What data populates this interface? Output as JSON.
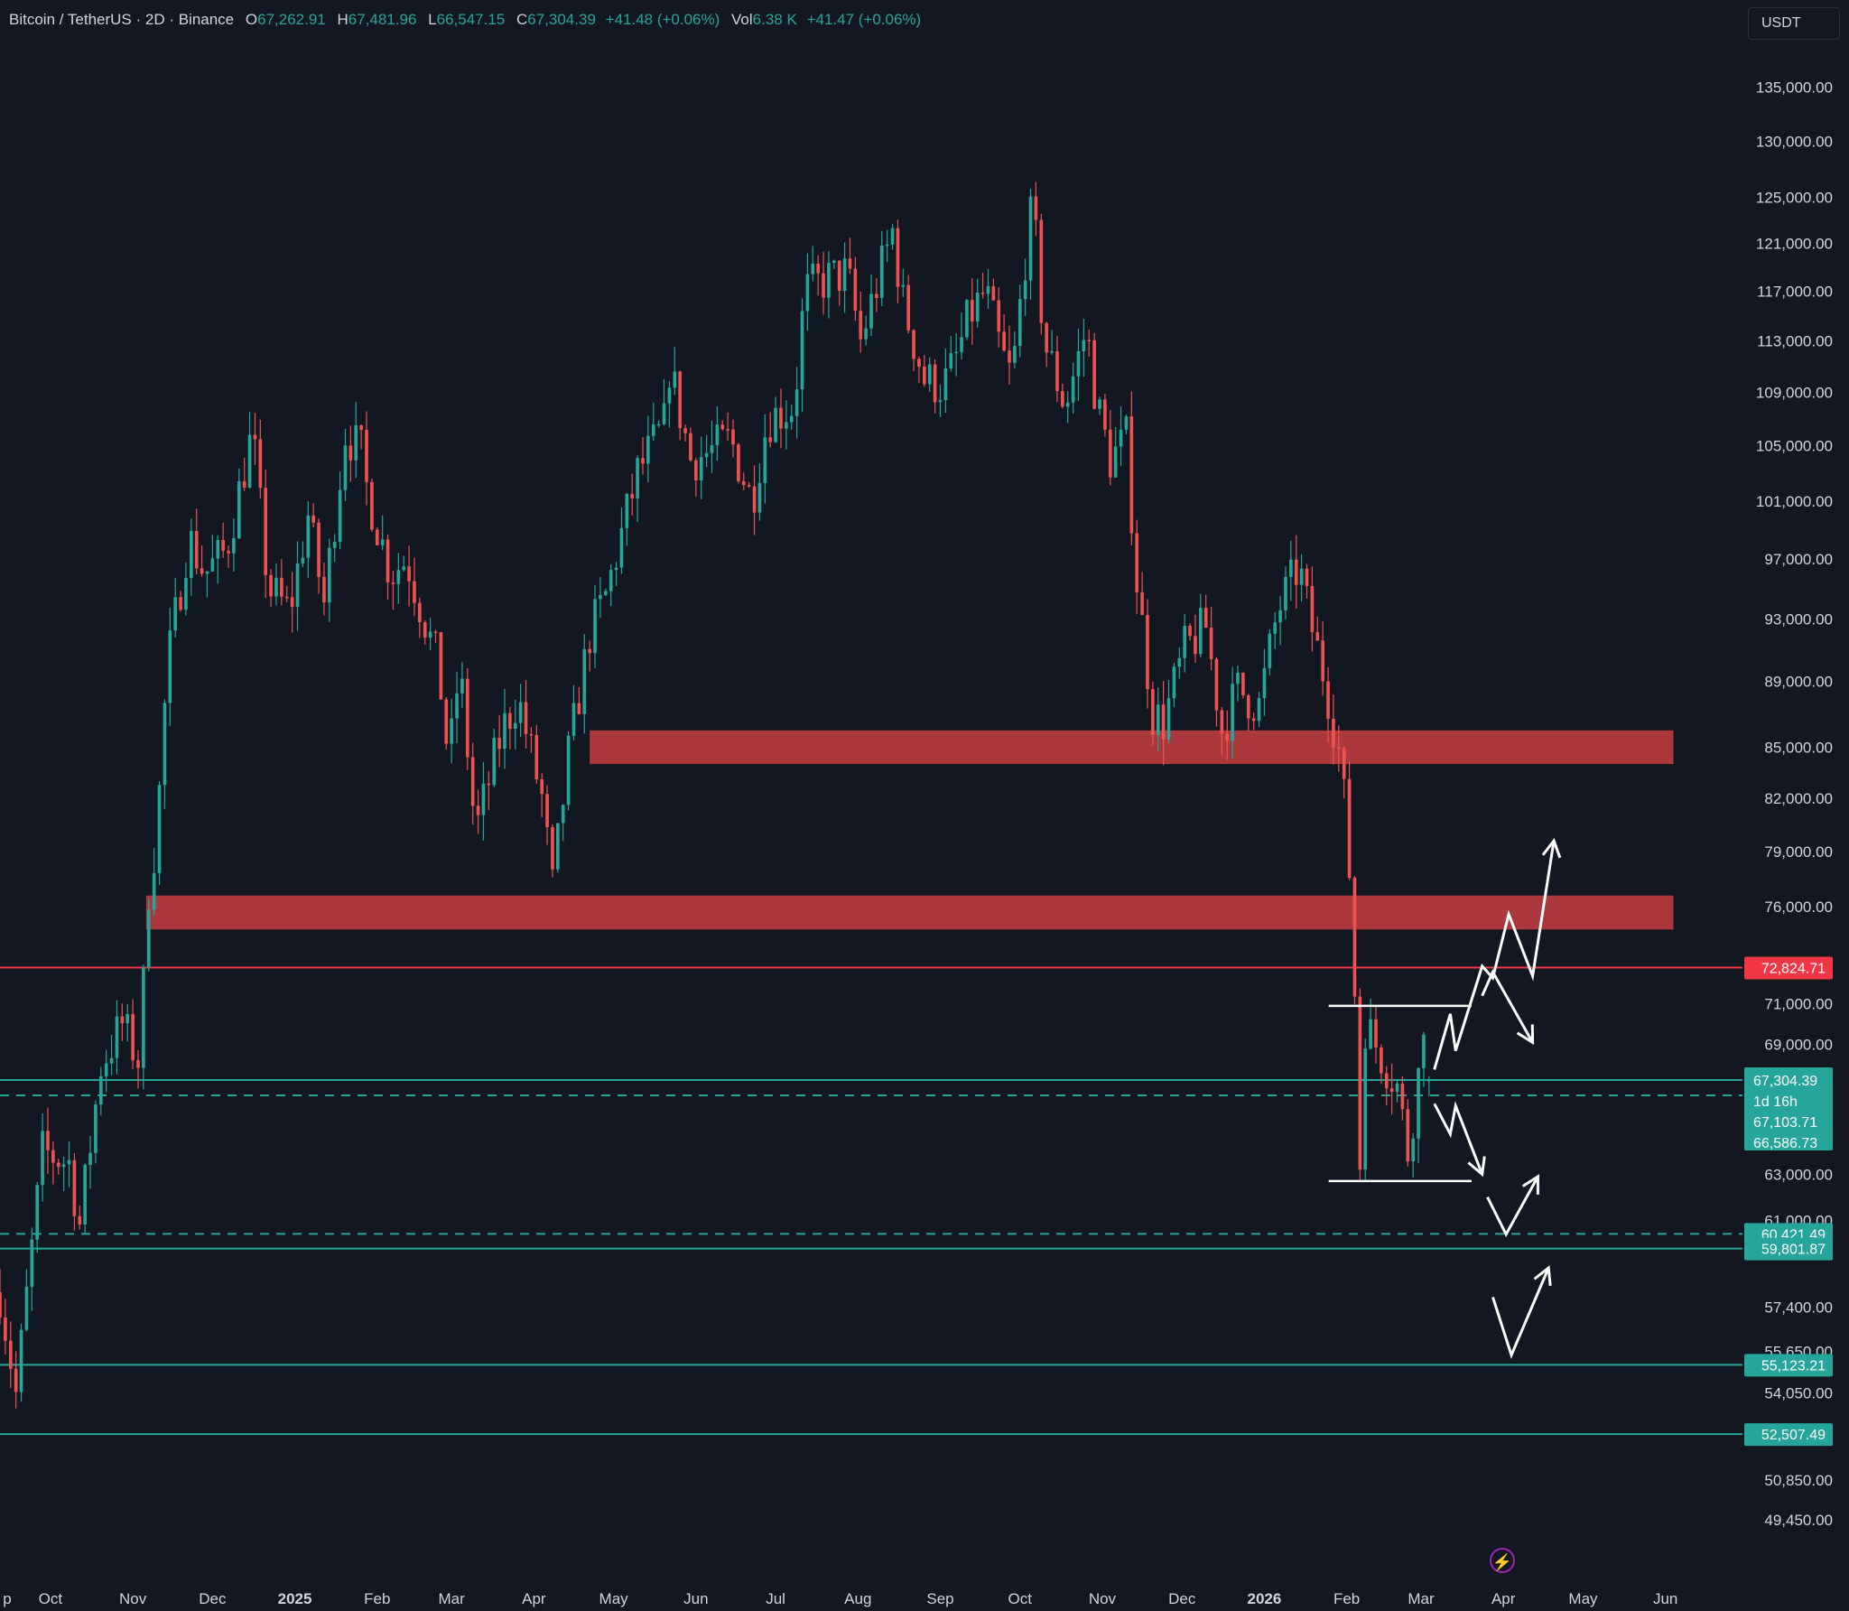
{
  "header": {
    "symbol": "Bitcoin / TetherUS · 2D · Binance",
    "o_label": "O",
    "o_value": "67,262.91",
    "h_label": "H",
    "h_value": "67,481.96",
    "l_label": "L",
    "l_value": "66,547.15",
    "c_label": "C",
    "c_value": "67,304.39",
    "change": "+41.48 (+0.06%)",
    "vol_label": "Vol",
    "vol_value": "6.38 K",
    "vol_change": "+41.47 (+0.06%)"
  },
  "currency": "USDT",
  "colors": {
    "background": "#131722",
    "up": "#26a69a",
    "down": "#ef5350",
    "zone": "#b23a3f",
    "resistance_line": "#f23645",
    "support_line": "#26a69a",
    "axis_text": "#d1d4dc",
    "drawing": "#ffffff"
  },
  "chart_data": {
    "type": "candlestick",
    "interval": "2D",
    "y_scale": "log",
    "ylim": [
      48700,
      138000
    ],
    "x_range": [
      "2024-09-12",
      "2026-06-30"
    ],
    "price_axis_ticks": [
      135000,
      130000,
      125000,
      121000,
      117000,
      113000,
      109000,
      105000,
      101000,
      97000,
      93000,
      89000,
      85000,
      82000,
      79000,
      76000,
      71000,
      69000,
      63000,
      61000,
      57400,
      55650,
      54050,
      50850,
      49450
    ],
    "price_tick_labels": [
      "135,000.00",
      "130,000.00",
      "125,000.00",
      "121,000.00",
      "117,000.00",
      "113,000.00",
      "109,000.00",
      "105,000.00",
      "101,000.00",
      "97,000.00",
      "93,000.00",
      "89,000.00",
      "85,000.00",
      "82,000.00",
      "79,000.00",
      "76,000.00",
      "71,000.00",
      "69,000.00",
      "63,000.00",
      "61,000.00",
      "57,400.00",
      "55,650.00",
      "54,050.00",
      "50,850.00",
      "49,450.00"
    ],
    "time_axis_labels": [
      {
        "label": "p",
        "date": "2024-09-12"
      },
      {
        "label": "Oct",
        "date": "2024-10-01"
      },
      {
        "label": "Nov",
        "date": "2024-11-01"
      },
      {
        "label": "Dec",
        "date": "2024-12-01"
      },
      {
        "label": "2025",
        "date": "2025-01-01"
      },
      {
        "label": "Feb",
        "date": "2025-02-01"
      },
      {
        "label": "Mar",
        "date": "2025-03-01"
      },
      {
        "label": "Apr",
        "date": "2025-04-01"
      },
      {
        "label": "May",
        "date": "2025-05-01"
      },
      {
        "label": "Jun",
        "date": "2025-06-01"
      },
      {
        "label": "Jul",
        "date": "2025-07-01"
      },
      {
        "label": "Aug",
        "date": "2025-08-01"
      },
      {
        "label": "Sep",
        "date": "2025-09-01"
      },
      {
        "label": "Oct",
        "date": "2025-10-01"
      },
      {
        "label": "Nov",
        "date": "2025-11-01"
      },
      {
        "label": "Dec",
        "date": "2025-12-01"
      },
      {
        "label": "2026",
        "date": "2026-01-01"
      },
      {
        "label": "Feb",
        "date": "2026-02-01"
      },
      {
        "label": "Mar",
        "date": "2026-03-01"
      },
      {
        "label": "Apr",
        "date": "2026-04-01"
      },
      {
        "label": "May",
        "date": "2026-05-01"
      },
      {
        "label": "Jun",
        "date": "2026-06-01"
      }
    ],
    "price_path_keypoints": [
      [
        "2024-09-12",
        58000
      ],
      [
        "2024-09-18",
        54000
      ],
      [
        "2024-09-28",
        64000
      ],
      [
        "2024-10-08",
        63500
      ],
      [
        "2024-10-12",
        60800
      ],
      [
        "2024-10-20",
        68000
      ],
      [
        "2024-10-28",
        70000
      ],
      [
        "2024-11-04",
        68000
      ],
      [
        "2024-11-06",
        76000
      ],
      [
        "2024-11-10",
        80000
      ],
      [
        "2024-11-14",
        90000
      ],
      [
        "2024-11-22",
        98500
      ],
      [
        "2024-11-28",
        96000
      ],
      [
        "2024-12-06",
        97500
      ],
      [
        "2024-12-16",
        106000
      ],
      [
        "2024-12-22",
        95000
      ],
      [
        "2024-12-30",
        93500
      ],
      [
        "2025-01-06",
        100000
      ],
      [
        "2025-01-12",
        94000
      ],
      [
        "2025-01-20",
        106000
      ],
      [
        "2025-01-26",
        104500
      ],
      [
        "2025-01-28",
        102000
      ],
      [
        "2025-02-06",
        96000
      ],
      [
        "2025-02-12",
        97000
      ],
      [
        "2025-02-24",
        90000
      ],
      [
        "2025-02-28",
        84000
      ],
      [
        "2025-03-04",
        90000
      ],
      [
        "2025-03-10",
        80000
      ],
      [
        "2025-03-20",
        86000
      ],
      [
        "2025-03-26",
        88000
      ],
      [
        "2025-04-04",
        82000
      ],
      [
        "2025-04-08",
        77000
      ],
      [
        "2025-04-14",
        84500
      ],
      [
        "2025-04-22",
        92000
      ],
      [
        "2025-04-28",
        94500
      ],
      [
        "2025-05-10",
        103000
      ],
      [
        "2025-05-20",
        106500
      ],
      [
        "2025-05-22",
        111000
      ],
      [
        "2025-05-30",
        104000
      ],
      [
        "2025-06-06",
        104500
      ],
      [
        "2025-06-14",
        105500
      ],
      [
        "2025-06-22",
        101000
      ],
      [
        "2025-06-28",
        107000
      ],
      [
        "2025-07-08",
        108000
      ],
      [
        "2025-07-12",
        117000
      ],
      [
        "2025-07-20",
        118000
      ],
      [
        "2025-07-28",
        118500
      ],
      [
        "2025-08-02",
        113000
      ],
      [
        "2025-08-10",
        119000
      ],
      [
        "2025-08-14",
        122000
      ],
      [
        "2025-08-18",
        116000
      ],
      [
        "2025-08-26",
        110000
      ],
      [
        "2025-09-02",
        109500
      ],
      [
        "2025-09-06",
        111000
      ],
      [
        "2025-09-12",
        115000
      ],
      [
        "2025-09-18",
        117000
      ],
      [
        "2025-09-24",
        112000
      ],
      [
        "2025-09-28",
        110000
      ],
      [
        "2025-10-04",
        122000
      ],
      [
        "2025-10-06",
        124000
      ],
      [
        "2025-10-10",
        113000
      ],
      [
        "2025-10-18",
        108000
      ],
      [
        "2025-10-26",
        114000
      ],
      [
        "2025-10-30",
        108000
      ],
      [
        "2025-11-04",
        104000
      ],
      [
        "2025-11-10",
        105500
      ],
      [
        "2025-11-14",
        95500
      ],
      [
        "2025-11-20",
        87000
      ],
      [
        "2025-11-24",
        86500
      ],
      [
        "2025-12-02",
        91000
      ],
      [
        "2025-12-10",
        92500
      ],
      [
        "2025-12-16",
        86000
      ],
      [
        "2025-12-22",
        88500
      ],
      [
        "2025-12-30",
        87500
      ],
      [
        "2026-01-06",
        93500
      ],
      [
        "2026-01-14",
        96500
      ],
      [
        "2026-01-18",
        93000
      ],
      [
        "2026-01-24",
        89000
      ],
      [
        "2026-01-30",
        84000
      ],
      [
        "2026-02-03",
        76000
      ],
      [
        "2026-02-06",
        63500
      ],
      [
        "2026-02-08",
        70000
      ],
      [
        "2026-02-14",
        68500
      ],
      [
        "2026-02-20",
        67000
      ],
      [
        "2026-02-24",
        64000
      ],
      [
        "2026-02-28",
        67500
      ],
      [
        "2026-03-02",
        70500
      ],
      [
        "2026-03-04",
        67304
      ]
    ],
    "last_candle": {
      "open": 67262.91,
      "high": 67481.96,
      "low": 66547.15,
      "close": 67304.39
    },
    "zones": [
      {
        "top": 86000,
        "bottom": 84000,
        "from": "2025-04-22",
        "to": "2026-06-04"
      },
      {
        "top": 76600,
        "bottom": 74800,
        "from": "2024-11-06",
        "to": "2026-06-04"
      }
    ],
    "horizontal_lines": [
      {
        "price": 72824.71,
        "label": "72,824.71",
        "color": "#f23645",
        "style": "solid"
      },
      {
        "price": 67304.39,
        "label": "67,304.39",
        "color": "#26a69a",
        "style": "solid"
      },
      {
        "price": 66586.73,
        "label": "",
        "color": "#26a69a",
        "style": "dashed"
      },
      {
        "price": 60421.49,
        "label": "60,421.49",
        "color": "#26a69a",
        "style": "dashed"
      },
      {
        "price": 59801.87,
        "label": "59,801.87",
        "color": "#26a69a",
        "style": "solid"
      },
      {
        "price": 55123.21,
        "label": "55,123.21",
        "color": "#26a69a",
        "style": "solid"
      },
      {
        "price": 52507.49,
        "label": "52,507.49",
        "color": "#26a69a",
        "style": "solid"
      }
    ],
    "price_badge": {
      "price": "67,304.39",
      "countdown": "1d 16h",
      "ma1": "67,103.71",
      "ma2": "66,586.73"
    },
    "range_box": {
      "from": "2026-02-01",
      "to": "2026-03-20",
      "top": 70900,
      "bottom": 62700
    },
    "scenario_paths": [
      [
        [
          "2026-03-06",
          67800
        ],
        [
          "2026-03-12",
          70500
        ],
        [
          "2026-03-14",
          68700
        ],
        [
          "2026-03-24",
          72900
        ],
        [
          "2026-03-28",
          72300
        ],
        [
          "2026-04-03",
          75600
        ],
        [
          "2026-04-12",
          72400
        ],
        [
          "2026-04-20",
          79600
        ]
      ],
      [
        [
          "2026-03-24",
          71400
        ],
        [
          "2026-03-28",
          72600
        ],
        [
          "2026-04-12",
          69100
        ]
      ],
      [
        [
          "2026-03-06",
          66200
        ],
        [
          "2026-03-12",
          64800
        ],
        [
          "2026-03-14",
          66100
        ],
        [
          "2026-03-24",
          63000
        ]
      ],
      [
        [
          "2026-03-26",
          62000
        ],
        [
          "2026-04-02",
          60400
        ],
        [
          "2026-04-14",
          62900
        ]
      ],
      [
        [
          "2026-03-28",
          57800
        ],
        [
          "2026-04-04",
          55500
        ],
        [
          "2026-04-18",
          59000
        ]
      ]
    ]
  }
}
